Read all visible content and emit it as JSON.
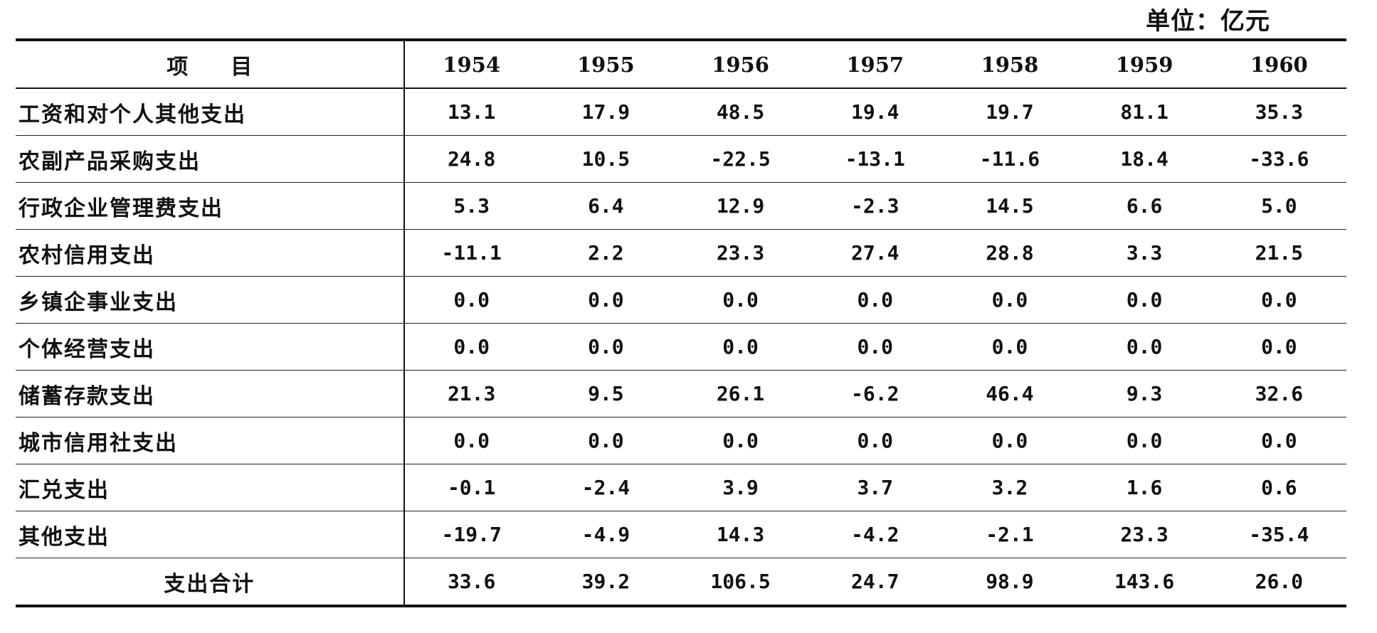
{
  "unit_label": "单位：亿元",
  "header": {
    "item_label": "项目",
    "years": [
      "1954",
      "1955",
      "1956",
      "1957",
      "1958",
      "1959",
      "1960"
    ]
  },
  "rows": [
    {
      "label": "工资和对个人其他支出",
      "values": [
        "13.1",
        "17.9",
        "48.5",
        "19.4",
        "19.7",
        "81.1",
        "35.3"
      ]
    },
    {
      "label": "农副产品采购支出",
      "values": [
        "24.8",
        "10.5",
        "-22.5",
        "-13.1",
        "-11.6",
        "18.4",
        "-33.6"
      ]
    },
    {
      "label": "行政企业管理费支出",
      "values": [
        "5.3",
        "6.4",
        "12.9",
        "-2.3",
        "14.5",
        "6.6",
        "5.0"
      ]
    },
    {
      "label": "农村信用支出",
      "values": [
        "-11.1",
        "2.2",
        "23.3",
        "27.4",
        "28.8",
        "3.3",
        "21.5"
      ]
    },
    {
      "label": "乡镇企事业支出",
      "values": [
        "0.0",
        "0.0",
        "0.0",
        "0.0",
        "0.0",
        "0.0",
        "0.0"
      ]
    },
    {
      "label": "个体经营支出",
      "values": [
        "0.0",
        "0.0",
        "0.0",
        "0.0",
        "0.0",
        "0.0",
        "0.0"
      ]
    },
    {
      "label": "储蓄存款支出",
      "values": [
        "21.3",
        "9.5",
        "26.1",
        "-6.2",
        "46.4",
        "9.3",
        "32.6"
      ]
    },
    {
      "label": "城市信用社支出",
      "values": [
        "0.0",
        "0.0",
        "0.0",
        "0.0",
        "0.0",
        "0.0",
        "0.0"
      ]
    },
    {
      "label": "汇兑支出",
      "values": [
        "-0.1",
        "-2.4",
        "3.9",
        "3.7",
        "3.2",
        "1.6",
        "0.6"
      ]
    },
    {
      "label": "其他支出",
      "values": [
        "-19.7",
        "-4.9",
        "14.3",
        "-4.2",
        "-2.1",
        "23.3",
        "-35.4"
      ]
    }
  ],
  "total": {
    "label": "支出合计",
    "values": [
      "33.6",
      "39.2",
      "106.5",
      "24.7",
      "98.9",
      "143.6",
      "26.0"
    ]
  }
}
